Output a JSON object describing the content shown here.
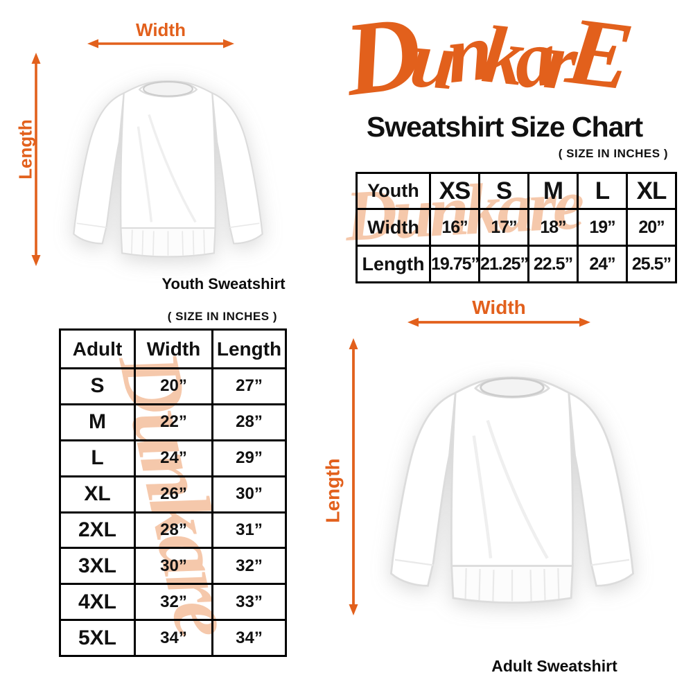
{
  "brand": {
    "logo": "DunkarE",
    "subtitle": "Sweatshirt Size Chart",
    "watermark": "Dunkare"
  },
  "units_note": "( SIZE IN INCHES )",
  "youth_diagram": {
    "width_label": "Width",
    "length_label": "Length",
    "caption": "Youth Sweatshirt"
  },
  "adult_diagram": {
    "width_label": "Width",
    "length_label": "Length",
    "caption": "Adult Sweatshirt"
  },
  "youth_table": {
    "header": [
      "Youth",
      "XS",
      "S",
      "M",
      "L",
      "XL"
    ],
    "rows": [
      {
        "label": "Width",
        "values": [
          "16”",
          "17”",
          "18”",
          "19”",
          "20”"
        ]
      },
      {
        "label": "Length",
        "values": [
          "19.75”",
          "21.25”",
          "22.5”",
          "24”",
          "25.5”"
        ]
      }
    ]
  },
  "adult_table": {
    "header": [
      "Adult",
      "Width",
      "Length"
    ],
    "rows": [
      [
        "S",
        "20”",
        "27”"
      ],
      [
        "M",
        "22”",
        "28”"
      ],
      [
        "L",
        "24”",
        "29”"
      ],
      [
        "XL",
        "26”",
        "30”"
      ],
      [
        "2XL",
        "28”",
        "31”"
      ],
      [
        "3XL",
        "30”",
        "32”"
      ],
      [
        "4XL",
        "32”",
        "33”"
      ],
      [
        "5XL",
        "34”",
        "34”"
      ]
    ]
  },
  "colors": {
    "accent_orange": "#E2601C",
    "watermark_peach": "#F5C8AB",
    "table_border_black": "#000000"
  }
}
